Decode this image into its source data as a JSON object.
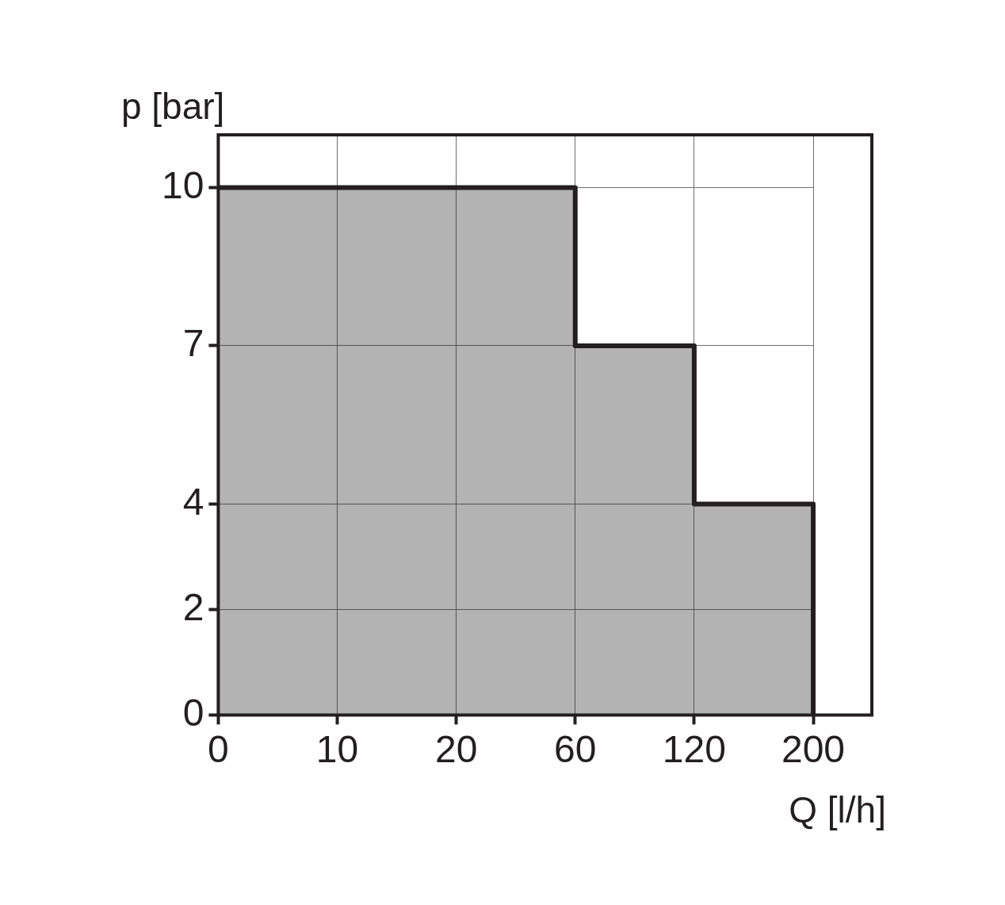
{
  "chart_data": {
    "type": "step",
    "xlabel": "Q [l/h]",
    "ylabel": "p [bar]",
    "categories": [
      "0",
      "10",
      "20",
      "60",
      "120",
      "200"
    ],
    "series": [
      {
        "color": "#231f20",
        "values": [
          10,
          10,
          10,
          7,
          4,
          0
        ]
      }
    ],
    "ylim": [
      0,
      11
    ],
    "yticks": [
      0,
      2,
      4,
      7,
      10
    ],
    "grid": true,
    "legend": false,
    "marker": "none",
    "line_style": "solid"
  }
}
